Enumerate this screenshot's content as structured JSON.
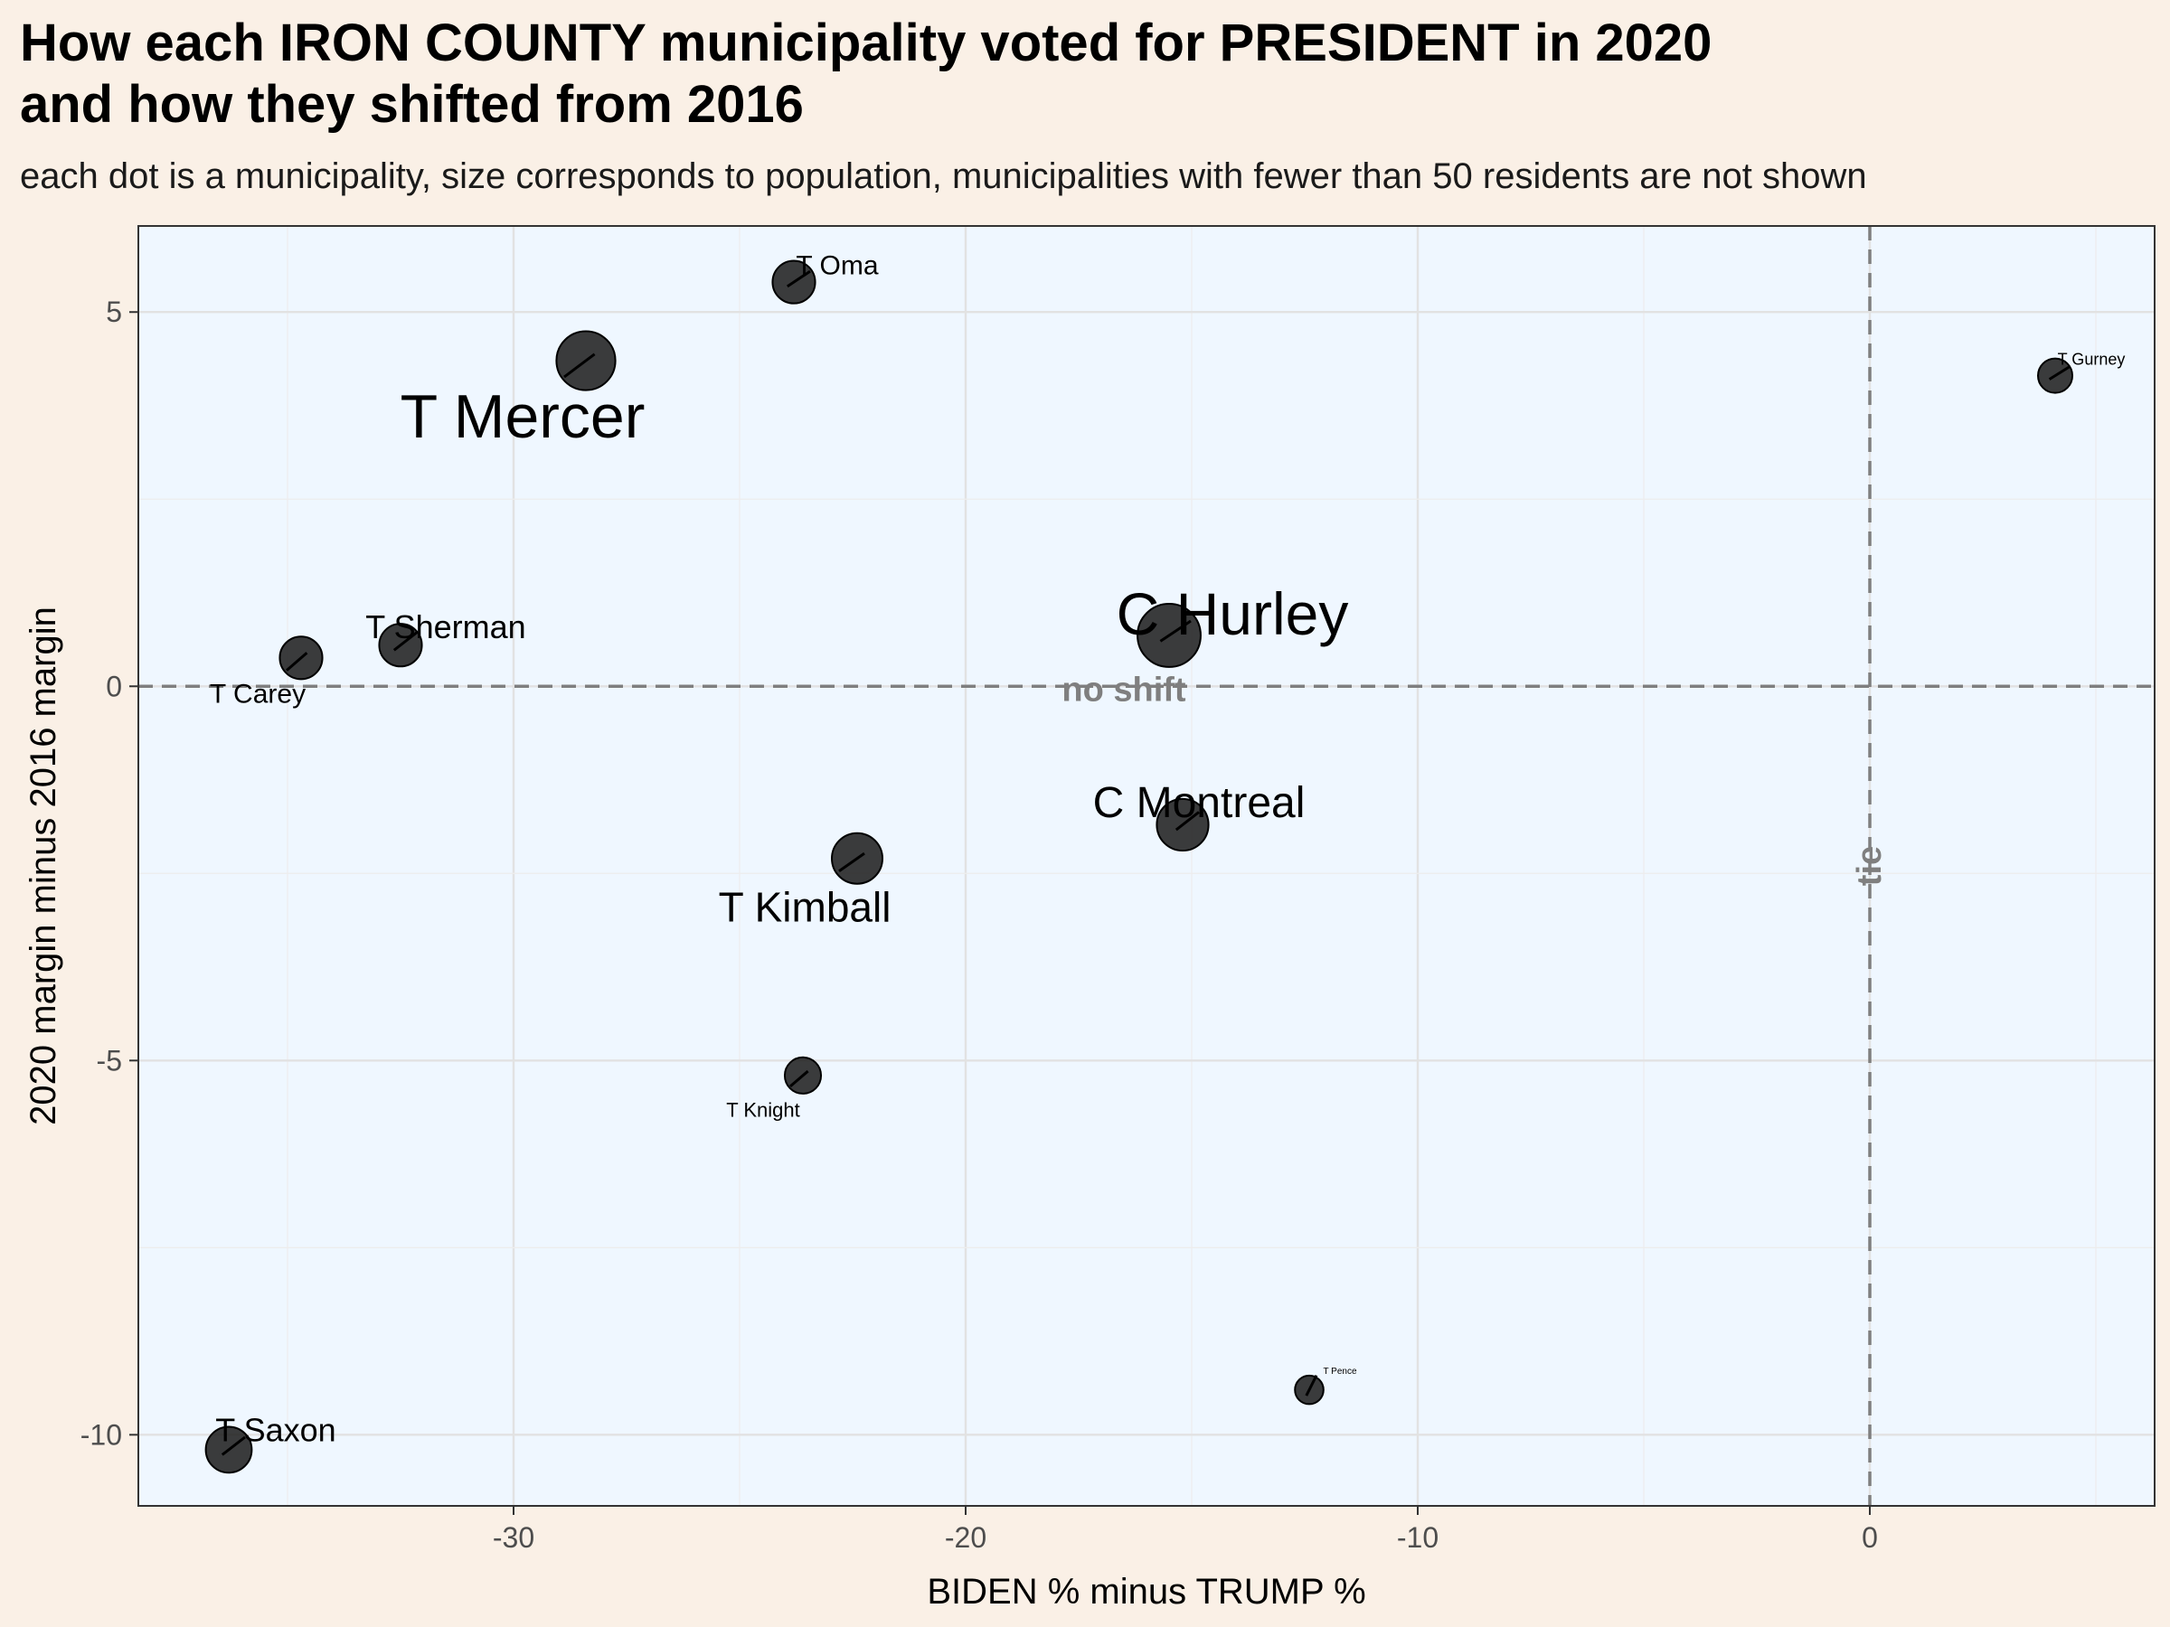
{
  "chart_data": {
    "type": "scatter",
    "title": "How each IRON COUNTY municipality voted for PRESIDENT in 2020\nand how they shifted from 2016",
    "subtitle": "each dot is a municipality, size corresponds to population, municipalities with fewer than 50 residents are not shown",
    "xlabel": "BIDEN % minus TRUMP %",
    "ylabel": "2020 margin minus 2016 margin",
    "xlim": [
      -38.3,
      6.3
    ],
    "ylim": [
      -10.95,
      6.15
    ],
    "xticks": [
      -30,
      -20,
      -10,
      0
    ],
    "yticks": [
      5,
      0,
      -5,
      -10
    ],
    "grid": true,
    "reference_lines": [
      {
        "axis": "y",
        "value": 0,
        "label": "no shift",
        "style": "dashed"
      },
      {
        "axis": "x",
        "value": 0,
        "label": "tie",
        "style": "dashed"
      }
    ],
    "colors": {
      "panel_background": "#eff7ff",
      "page_background": "#faf0e6",
      "point_fill": "#1a1a1a",
      "reference_line": "#7f7f7f",
      "grid_major": "#e2e2e2",
      "grid_minor": "#ededed"
    },
    "points": [
      {
        "name": "T Oma",
        "x": -23.8,
        "y": 5.4,
        "population_size": 2
      },
      {
        "name": "T Mercer",
        "x": -28.4,
        "y": 4.35,
        "population_size": 5
      },
      {
        "name": "T Gurney",
        "x": 4.1,
        "y": 4.15,
        "population_size": 1
      },
      {
        "name": "T Sherman",
        "x": -32.5,
        "y": 0.55,
        "population_size": 2
      },
      {
        "name": "T Carey",
        "x": -34.7,
        "y": 0.38,
        "population_size": 2
      },
      {
        "name": "C Hurley",
        "x": -15.5,
        "y": 0.68,
        "population_size": 6
      },
      {
        "name": "C Montreal",
        "x": -15.2,
        "y": -1.85,
        "population_size": 3.5
      },
      {
        "name": "T Kimball",
        "x": -22.4,
        "y": -2.3,
        "population_size": 3.3
      },
      {
        "name": "T Knight",
        "x": -23.6,
        "y": -5.2,
        "population_size": 1.2
      },
      {
        "name": "T Pence",
        "x": -12.4,
        "y": -9.4,
        "population_size": 0.5
      },
      {
        "name": "T Saxon",
        "x": -36.3,
        "y": -10.2,
        "population_size": 2.5
      }
    ]
  }
}
